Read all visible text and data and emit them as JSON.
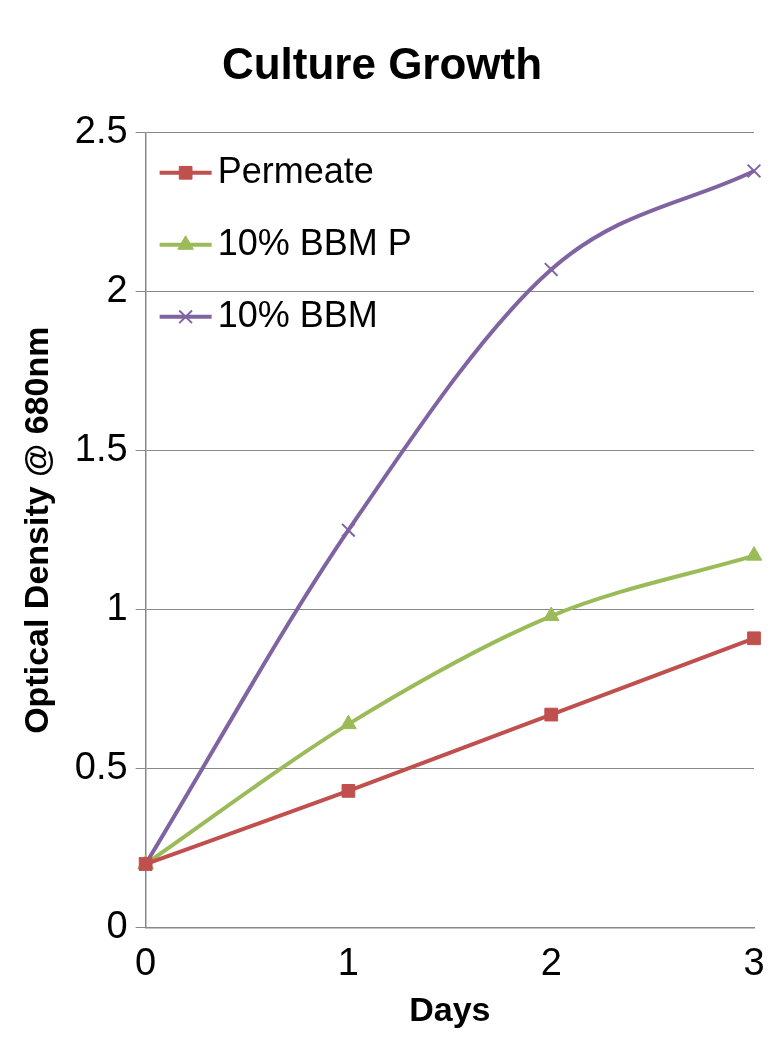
{
  "chart_data": {
    "type": "line",
    "title": "Culture Growth",
    "xlabel": "Days",
    "ylabel": "Optical Density @ 680nm",
    "x": [
      0,
      1,
      2,
      3
    ],
    "xlim": [
      0,
      3
    ],
    "xticks": [
      0,
      1,
      2,
      3
    ],
    "ylim": [
      0,
      2.5
    ],
    "yticks": [
      0,
      0.5,
      1,
      1.5,
      2,
      2.5
    ],
    "grid": "y",
    "legend": "top left",
    "series": [
      {
        "name": "Permeate",
        "color": "#c0504d",
        "marker": "square",
        "values": [
          0.2,
          0.43,
          0.67,
          0.91
        ]
      },
      {
        "name": "10% BBM P",
        "color": "#9bbb59",
        "marker": "triangle",
        "values": [
          0.2,
          0.64,
          0.98,
          1.17
        ]
      },
      {
        "name": "10% BBM",
        "color": "#8064a2",
        "marker": "cross",
        "values": [
          0.2,
          1.25,
          2.07,
          2.38
        ]
      }
    ]
  }
}
